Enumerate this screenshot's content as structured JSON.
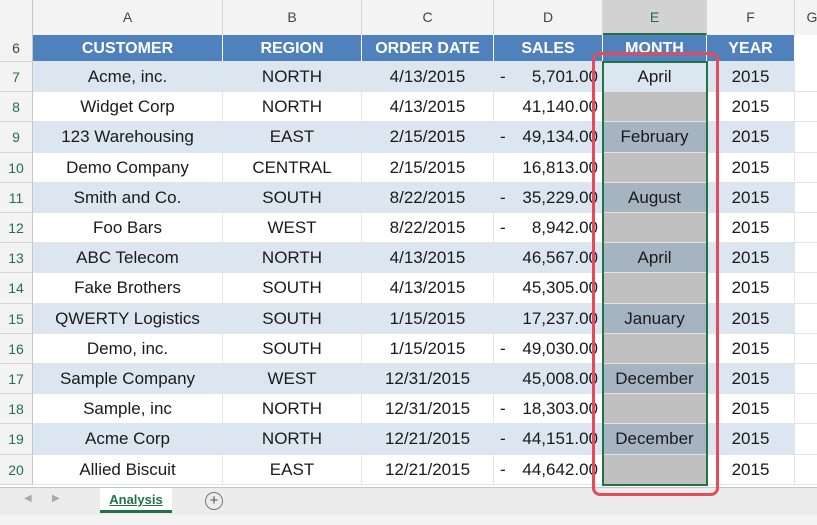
{
  "columns": [
    {
      "letter": "A"
    },
    {
      "letter": "B"
    },
    {
      "letter": "C"
    },
    {
      "letter": "D"
    },
    {
      "letter": "E"
    },
    {
      "letter": "F"
    },
    {
      "letter": "G"
    }
  ],
  "headerRow": {
    "number": "6",
    "labels": [
      "CUSTOMER",
      "REGION",
      "ORDER DATE",
      "SALES",
      "MONTH",
      "YEAR"
    ]
  },
  "rows": [
    {
      "n": "7",
      "customer": "Acme, inc.",
      "region": "NORTH",
      "date": "4/13/2015",
      "dash": "-",
      "sales": "5,701.00",
      "month": "April",
      "year": "2015"
    },
    {
      "n": "8",
      "customer": "Widget Corp",
      "region": "NORTH",
      "date": "4/13/2015",
      "dash": "",
      "sales": "41,140.00",
      "month": "",
      "year": "2015"
    },
    {
      "n": "9",
      "customer": "123 Warehousing",
      "region": "EAST",
      "date": "2/15/2015",
      "dash": "-",
      "sales": "49,134.00",
      "month": "February",
      "year": "2015"
    },
    {
      "n": "10",
      "customer": "Demo Company",
      "region": "CENTRAL",
      "date": "2/15/2015",
      "dash": "",
      "sales": "16,813.00",
      "month": "",
      "year": "2015"
    },
    {
      "n": "11",
      "customer": "Smith and Co.",
      "region": "SOUTH",
      "date": "8/22/2015",
      "dash": "-",
      "sales": "35,229.00",
      "month": "August",
      "year": "2015"
    },
    {
      "n": "12",
      "customer": "Foo Bars",
      "region": "WEST",
      "date": "8/22/2015",
      "dash": "-",
      "sales": "8,942.00",
      "month": "",
      "year": "2015"
    },
    {
      "n": "13",
      "customer": "ABC Telecom",
      "region": "NORTH",
      "date": "4/13/2015",
      "dash": "",
      "sales": "46,567.00",
      "month": "April",
      "year": "2015"
    },
    {
      "n": "14",
      "customer": "Fake Brothers",
      "region": "SOUTH",
      "date": "4/13/2015",
      "dash": "",
      "sales": "45,305.00",
      "month": "",
      "year": "2015"
    },
    {
      "n": "15",
      "customer": "QWERTY Logistics",
      "region": "SOUTH",
      "date": "1/15/2015",
      "dash": "",
      "sales": "17,237.00",
      "month": "January",
      "year": "2015"
    },
    {
      "n": "16",
      "customer": "Demo, inc.",
      "region": "SOUTH",
      "date": "1/15/2015",
      "dash": "-",
      "sales": "49,030.00",
      "month": "",
      "year": "2015"
    },
    {
      "n": "17",
      "customer": "Sample Company",
      "region": "WEST",
      "date": "12/31/2015",
      "dash": "",
      "sales": "45,008.00",
      "month": "December",
      "year": "2015"
    },
    {
      "n": "18",
      "customer": "Sample, inc",
      "region": "NORTH",
      "date": "12/31/2015",
      "dash": "-",
      "sales": "18,303.00",
      "month": "",
      "year": "2015"
    },
    {
      "n": "19",
      "customer": "Acme Corp",
      "region": "NORTH",
      "date": "12/21/2015",
      "dash": "-",
      "sales": "44,151.00",
      "month": "December",
      "year": "2015"
    },
    {
      "n": "20",
      "customer": "Allied Biscuit",
      "region": "EAST",
      "date": "12/21/2015",
      "dash": "-",
      "sales": "44,642.00",
      "month": "",
      "year": "2015"
    }
  ],
  "tabs": {
    "sheet_name": "Analysis",
    "add_symbol": "+",
    "prev_arrow": "◀",
    "next_arrow": "▶"
  },
  "colors": {
    "header_fill": "#4f81bd",
    "band_fill": "#dce6f1",
    "month_fill": "#a6b4c2",
    "selection": "#217346",
    "highlight": "#e64b5c"
  }
}
